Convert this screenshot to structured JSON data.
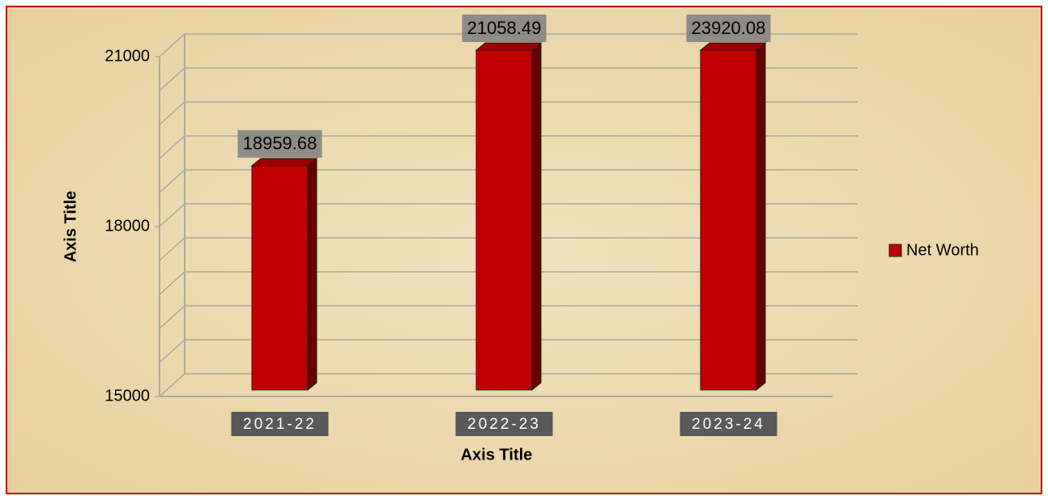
{
  "chart_data": {
    "type": "bar3d",
    "categories": [
      "2021-22",
      "2022-23",
      "2023-24"
    ],
    "series": [
      {
        "name": "Net Worth",
        "color": "#c00000",
        "values": [
          18959.68,
          21058.49,
          23920.08
        ]
      }
    ],
    "x_label": "Axis Title",
    "y_label": "Axis Title",
    "ylim": [
      15000,
      21000
    ],
    "yticks": [
      15000,
      18000,
      21000
    ],
    "grid": true,
    "ygrid": [
      15000,
      15600,
      16200,
      16800,
      17400,
      18000,
      18600,
      19200,
      19800,
      20400,
      21000
    ],
    "legend": "right"
  }
}
